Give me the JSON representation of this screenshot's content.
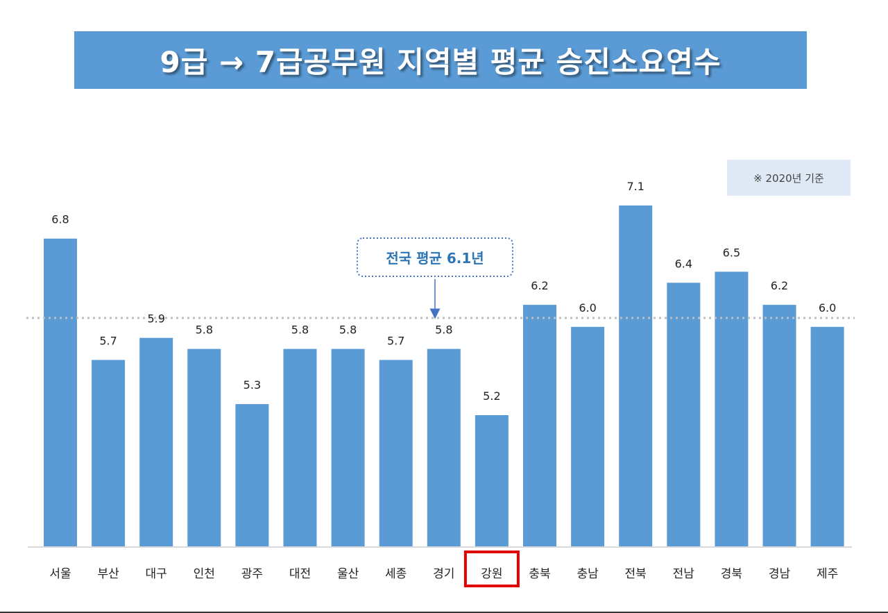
{
  "title": "9급 → 7급공무원 지역별 평균 승진소요연수",
  "note": "※ 2020년 기준",
  "colors": {
    "bar": "#5b9bd5",
    "banner": "#5b9bd5",
    "avg_line": "#bfbfbf",
    "callout": "#4472c4",
    "callout_text": "#2e75b6",
    "highlight": "#e00000",
    "note_bg": "#dfe9f5"
  },
  "chart_data": {
    "type": "bar",
    "categories": [
      "서울",
      "부산",
      "대구",
      "인천",
      "광주",
      "대전",
      "울산",
      "세종",
      "경기",
      "강원",
      "충북",
      "충남",
      "전북",
      "전남",
      "경북",
      "경남",
      "제주"
    ],
    "values": [
      6.8,
      5.7,
      5.9,
      5.8,
      5.3,
      5.8,
      5.8,
      5.7,
      5.8,
      5.2,
      6.2,
      6.0,
      7.1,
      6.4,
      6.5,
      6.2,
      6.0
    ],
    "value_labels": [
      "6.8",
      "5.7",
      "5.9",
      "5.8",
      "5.3",
      "5.8",
      "5.8",
      "5.7",
      "5.8",
      "5.2",
      "6.2",
      "6.0",
      "7.1",
      "6.4",
      "6.5",
      "6.2",
      "6.0"
    ],
    "title": "9급 → 7급공무원 지역별 평균 승진소요연수",
    "xlabel": "",
    "ylabel": "",
    "ylim": [
      3.2,
      7.6
    ],
    "reference_line": {
      "value": 6.1,
      "label": "전국 평균 6.1년"
    },
    "highlighted_category": "강원"
  }
}
